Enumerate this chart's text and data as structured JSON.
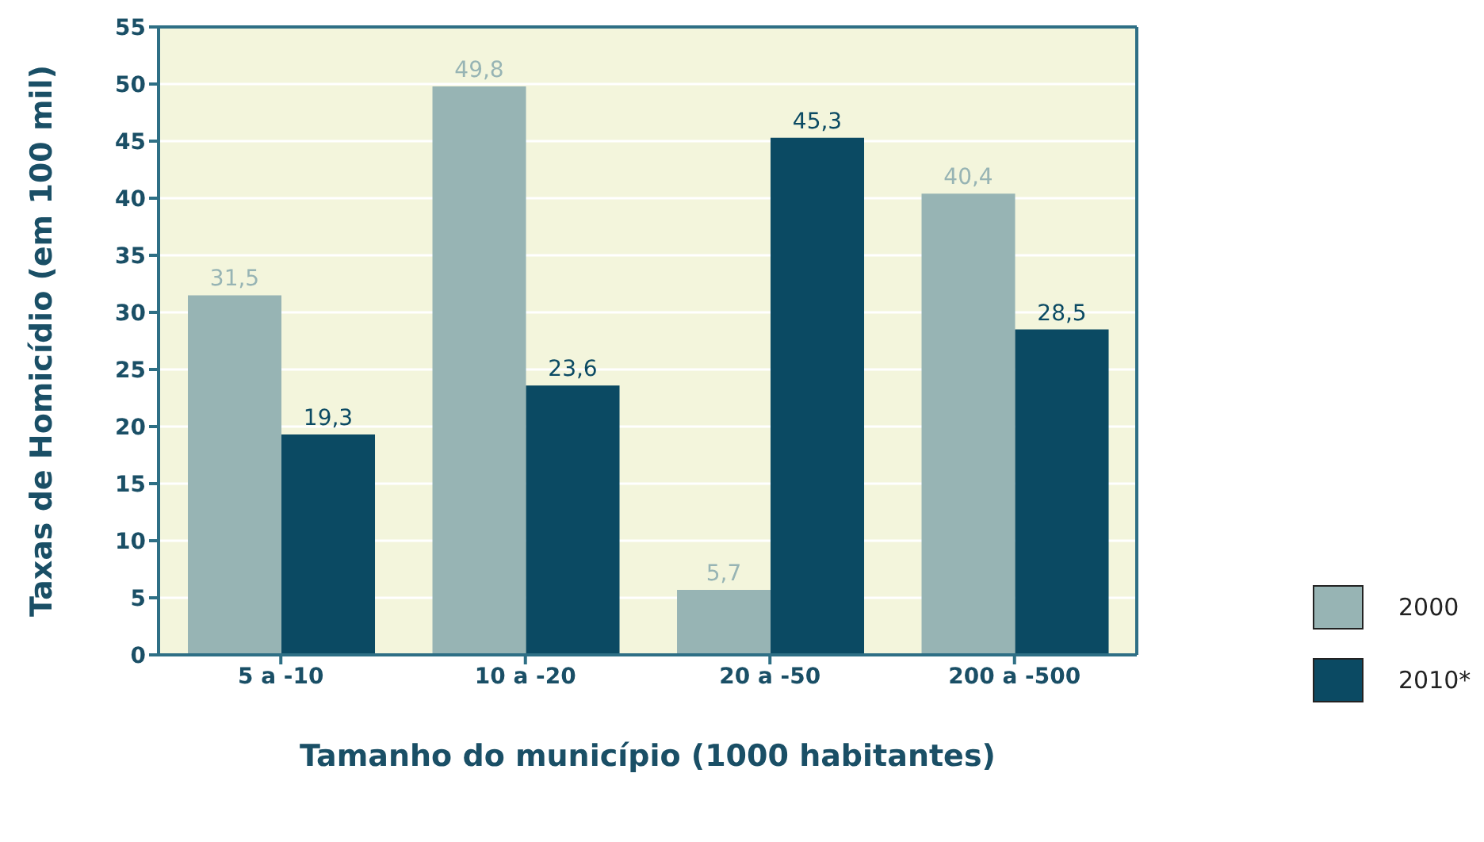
{
  "chart_data": {
    "type": "bar",
    "categories": [
      "5 a -10",
      "10 a -20",
      "20 a -50",
      "200 a -500"
    ],
    "series": [
      {
        "name": "2000",
        "color": "#97b4b4",
        "values": [
          31.5,
          49.8,
          5.7,
          40.4
        ],
        "value_labels": [
          "31,5",
          "49,8",
          "5,7",
          "40,4"
        ]
      },
      {
        "name": "2010*",
        "color": "#0b4a63",
        "values": [
          19.3,
          23.6,
          45.3,
          28.5
        ],
        "value_labels": [
          "19,3",
          "23,6",
          "45,3",
          "28,5"
        ]
      }
    ],
    "xlabel": "Tamanho do município (1000 habitantes)",
    "ylabel": "Taxas de Homicídio (em 100 mil)",
    "ylim": [
      0,
      55
    ],
    "yticks": [
      0,
      5,
      10,
      15,
      20,
      25,
      30,
      35,
      40,
      45,
      50,
      55
    ],
    "grid": "y",
    "legend": "bottom right"
  }
}
